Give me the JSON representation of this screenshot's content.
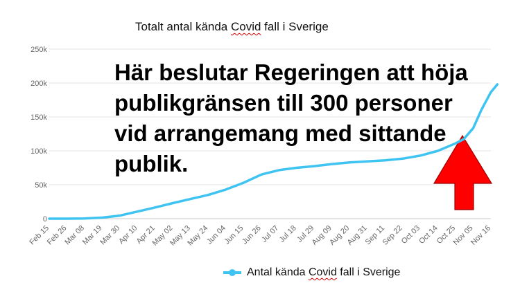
{
  "chart_data": {
    "type": "line",
    "title": "Totalt antal kända Covid fall i Sverige",
    "title_parts": [
      "Totalt antal kända ",
      "Covid",
      " fall i Sverige"
    ],
    "y_ticks": [
      0,
      50000,
      100000,
      150000,
      200000,
      250000
    ],
    "y_tick_labels": [
      "0",
      "50k",
      "100k",
      "150k",
      "200k",
      "250k"
    ],
    "ylim": [
      0,
      250000
    ],
    "x_tick_labels": [
      "Feb 15",
      "Feb 26",
      "Mar 08",
      "Mar 19",
      "Mar 30",
      "Apr 10",
      "Apr 21",
      "May 02",
      "May 13",
      "May 24",
      "Jun 04",
      "Jun 15",
      "Jun 26",
      "Jul 07",
      "Jul 18",
      "Jul 29",
      "Aug 09",
      "Aug 20",
      "Aug 31",
      "Sep 11",
      "Sep 22",
      "Oct 03",
      "Oct 14",
      "Oct 25",
      "Nov 05",
      "Nov 16"
    ],
    "grid": true,
    "legend_position": "bottom",
    "series": [
      {
        "name": "Antal kända Covid fall i Sverige",
        "name_parts": [
          "Antal kända ",
          "Covid",
          " fall i Sverige"
        ],
        "color": "#3fc4f2",
        "x": [
          "Feb 15",
          "Feb 26",
          "Mar 08",
          "Mar 19",
          "Mar 30",
          "Apr 10",
          "Apr 21",
          "May 02",
          "May 13",
          "May 24",
          "Jun 04",
          "Jun 15",
          "Jun 26",
          "Jul 07",
          "Jul 18",
          "Jul 29",
          "Aug 09",
          "Aug 20",
          "Aug 31",
          "Sep 11",
          "Sep 22",
          "Oct 03",
          "Oct 14",
          "Oct 25",
          "Oct 30",
          "Nov 05",
          "Nov 10",
          "Nov 16",
          "Nov 20"
        ],
        "values": [
          0,
          0,
          300,
          1500,
          4500,
          10500,
          16500,
          23000,
          29000,
          35000,
          43000,
          53000,
          65000,
          71500,
          75000,
          77500,
          80500,
          83000,
          84500,
          86000,
          88500,
          93000,
          100000,
          111000,
          117000,
          133500,
          160000,
          186500,
          198000
        ]
      }
    ],
    "annotation": {
      "text": "Här beslutar Regeringen att höja publikgränsen till 300 personer vid arrangemang med sittande publik.",
      "arrow_color": "#ff0000",
      "arrow_border": "#9b0000"
    }
  }
}
